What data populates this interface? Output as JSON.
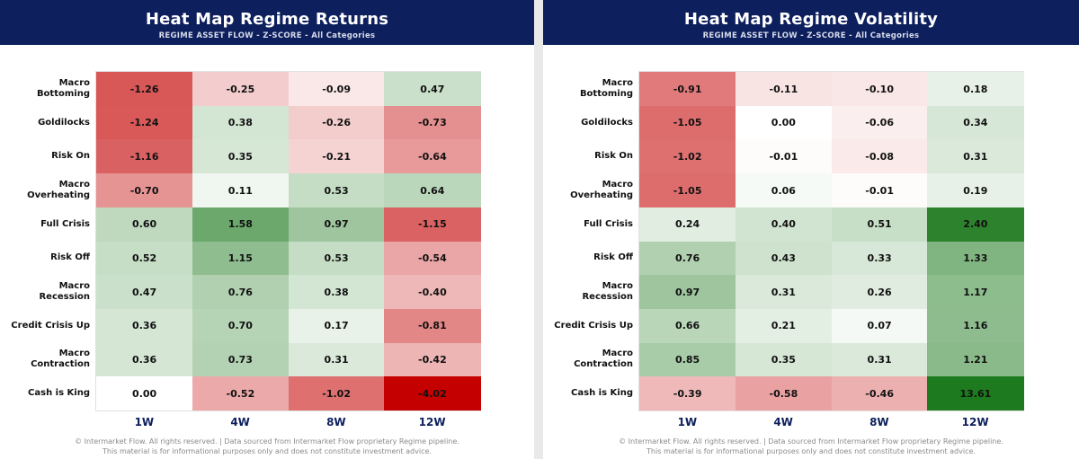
{
  "footer": {
    "line1": "© Intermarket Flow. All rights reserved.   |   Data sourced from Intermarket Flow proprietary Regime pipeline.",
    "line2": "This material is for informational purposes only and does not constitute investment advice."
  },
  "chart_data": [
    {
      "type": "heatmap",
      "title": "Heat Map Regime Returns",
      "subtitle": "REGIME ASSET FLOW  -  Z-SCORE  -  All Categories",
      "columns": [
        "1W",
        "4W",
        "8W",
        "12W"
      ],
      "rows": [
        "Macro\nBottoming",
        "Goldilocks",
        "Risk On",
        "Macro\nOverheating",
        "Full Crisis",
        "Risk Off",
        "Macro\nRecession",
        "Credit Crisis Up",
        "Macro\nContraction",
        "Cash is King"
      ],
      "values": [
        [
          -1.26,
          -0.25,
          -0.09,
          0.47
        ],
        [
          -1.24,
          0.38,
          -0.26,
          -0.73
        ],
        [
          -1.16,
          0.35,
          -0.21,
          -0.64
        ],
        [
          -0.7,
          0.11,
          0.53,
          0.64
        ],
        [
          0.6,
          1.58,
          0.97,
          -1.15
        ],
        [
          0.52,
          1.15,
          0.53,
          -0.54
        ],
        [
          0.47,
          0.76,
          0.38,
          -0.4
        ],
        [
          0.36,
          0.7,
          0.17,
          -0.81
        ],
        [
          0.36,
          0.73,
          0.31,
          -0.42
        ],
        [
          0.0,
          -0.52,
          -1.02,
          -4.02
        ]
      ],
      "colors": {
        "negative": "#c40000",
        "positive": "#1e7a1e",
        "zero": "#ffffff"
      }
    },
    {
      "type": "heatmap",
      "title": "Heat Map Regime Volatility",
      "subtitle": "REGIME ASSET FLOW  -  Z-SCORE  -  All Categories",
      "columns": [
        "1W",
        "4W",
        "8W",
        "12W"
      ],
      "rows": [
        "Macro\nBottoming",
        "Goldilocks",
        "Risk On",
        "Macro\nOverheating",
        "Full Crisis",
        "Risk Off",
        "Macro\nRecession",
        "Credit Crisis Up",
        "Macro\nContraction",
        "Cash is King"
      ],
      "values": [
        [
          -0.91,
          -0.11,
          -0.1,
          0.18
        ],
        [
          -1.05,
          0.0,
          -0.06,
          0.34
        ],
        [
          -1.02,
          -0.01,
          -0.08,
          0.31
        ],
        [
          -1.05,
          0.06,
          -0.01,
          0.19
        ],
        [
          0.24,
          0.4,
          0.51,
          2.4
        ],
        [
          0.76,
          0.43,
          0.33,
          1.33
        ],
        [
          0.97,
          0.31,
          0.26,
          1.17
        ],
        [
          0.66,
          0.21,
          0.07,
          1.16
        ],
        [
          0.85,
          0.35,
          0.31,
          1.21
        ],
        [
          -0.39,
          -0.58,
          -0.46,
          13.61
        ]
      ],
      "colors": {
        "negative": "#c40000",
        "positive": "#1e7a1e",
        "zero": "#ffffff"
      }
    }
  ]
}
